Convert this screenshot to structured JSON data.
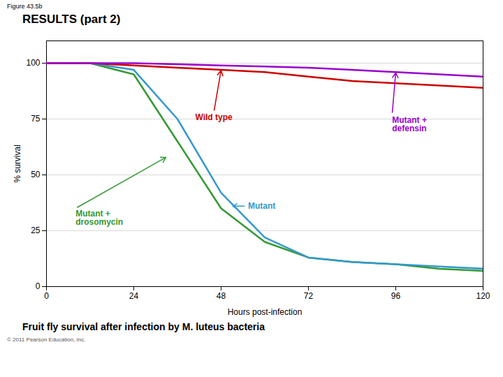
{
  "chart_data": {
    "type": "line",
    "figure_label": "Figure 43.5b",
    "title": "RESULTS (part 2)",
    "xlabel": "Hours post-infection",
    "ylabel": "% survival",
    "caption": "Fruit fly survival after infection by M. luteus bacteria",
    "copyright": "© 2011 Pearson Education, Inc.",
    "x": [
      0,
      12,
      24,
      36,
      48,
      60,
      72,
      84,
      96,
      108,
      120
    ],
    "series": [
      {
        "name": "Mutant +\ndrosomycin",
        "color": "#339933",
        "values": [
          100,
          100,
          95,
          65,
          35,
          20,
          13,
          11,
          10,
          8,
          7
        ]
      },
      {
        "name": "Mutant",
        "color": "#3399cc",
        "values": [
          100,
          100,
          97,
          75,
          42,
          22,
          13,
          11,
          10,
          9,
          8
        ]
      },
      {
        "name": "Wild type",
        "color": "#cc0000",
        "values": [
          100,
          100,
          99,
          98,
          97,
          96,
          94,
          92,
          91,
          90,
          89
        ]
      },
      {
        "name": "Mutant +\ndefensin",
        "color": "#9900cc",
        "values": [
          100,
          100,
          100,
          99.5,
          99,
          98.5,
          98,
          97,
          96,
          95,
          94
        ]
      }
    ],
    "annotations": [
      {
        "text": "Wild type",
        "x": 48,
        "y": 97,
        "text_x": 46,
        "text_y": 78,
        "color": "#cc0000"
      },
      {
        "text": "Mutant +\ndefensin",
        "x": 96,
        "y": 96,
        "text_x": 95,
        "text_y": 77,
        "color": "#9900cc"
      },
      {
        "text": "Mutant",
        "x": 51,
        "y": 36,
        "text_x": 55,
        "text_y": 36,
        "color": "#3399cc"
      },
      {
        "text": "Mutant +\ndrosomycin",
        "x": 33,
        "y": 58,
        "text_x": 8,
        "text_y": 35,
        "color": "#339933"
      }
    ],
    "xlim": [
      0,
      120
    ],
    "ylim": [
      0,
      110
    ],
    "xticks": [
      0,
      24,
      48,
      72,
      96,
      120
    ],
    "yticks": [
      0,
      25,
      50,
      75,
      100
    ],
    "grid": "y"
  }
}
